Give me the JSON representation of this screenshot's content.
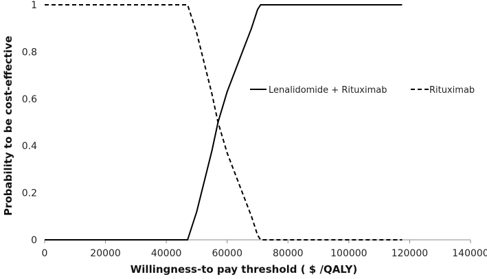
{
  "chart_data": {
    "type": "line",
    "xlabel": "Willingness-to pay threshold ( $ /QALY)",
    "ylabel": "Probability to be cost-effective",
    "xlim": [
      0,
      140000
    ],
    "ylim": [
      0,
      1
    ],
    "xticks": [
      0,
      20000,
      40000,
      60000,
      80000,
      100000,
      120000,
      140000
    ],
    "yticks": [
      0,
      0.2,
      0.4,
      0.6,
      0.8,
      1
    ],
    "grid": false,
    "legend_position": "right",
    "series": [
      {
        "name": "Lenalidomide + Rituximab",
        "style": "solid",
        "color": "#000000",
        "points": [
          [
            0,
            0
          ],
          [
            46500,
            0
          ],
          [
            47000,
            0
          ],
          [
            50000,
            0.12
          ],
          [
            55000,
            0.38
          ],
          [
            57000,
            0.5
          ],
          [
            60000,
            0.63
          ],
          [
            65000,
            0.8
          ],
          [
            68000,
            0.9
          ],
          [
            70000,
            0.98
          ],
          [
            71000,
            1
          ],
          [
            117500,
            1
          ]
        ]
      },
      {
        "name": "Rituximab",
        "style": "dashed",
        "color": "#000000",
        "points": [
          [
            0,
            1
          ],
          [
            46500,
            1
          ],
          [
            47000,
            1
          ],
          [
            50000,
            0.88
          ],
          [
            55000,
            0.62
          ],
          [
            57000,
            0.5
          ],
          [
            60000,
            0.37
          ],
          [
            65000,
            0.2
          ],
          [
            68000,
            0.1
          ],
          [
            70000,
            0.02
          ],
          [
            71000,
            0
          ],
          [
            117500,
            0
          ]
        ]
      }
    ]
  }
}
